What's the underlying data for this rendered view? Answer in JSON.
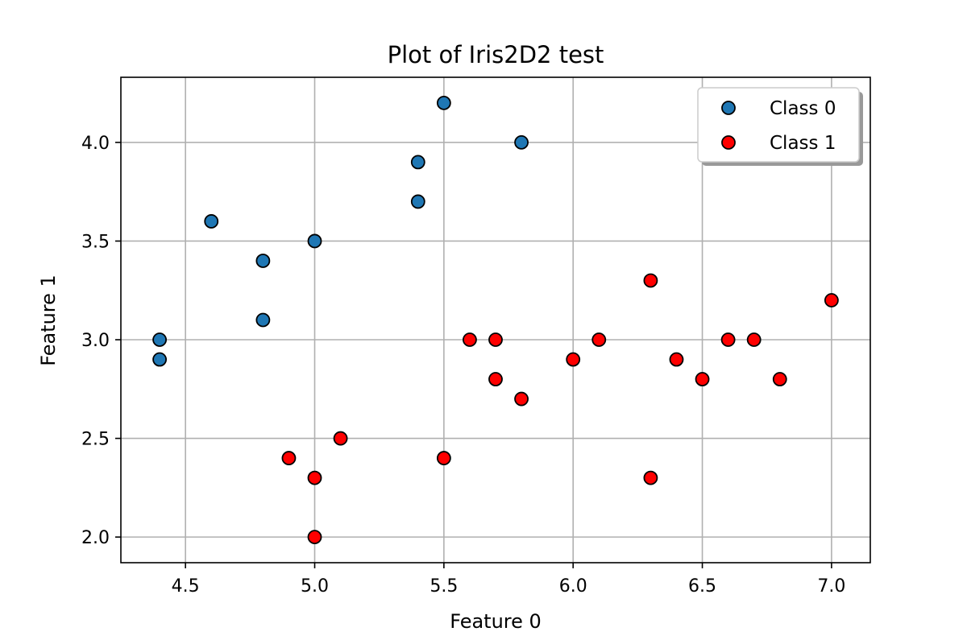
{
  "chart_data": {
    "type": "scatter",
    "title": "Plot of Iris2D2 test",
    "xlabel": "Feature 0",
    "ylabel": "Feature 1",
    "xlim": [
      4.25,
      7.15
    ],
    "ylim": [
      1.87,
      4.33
    ],
    "xticks": [
      4.5,
      5.0,
      5.5,
      6.0,
      6.5,
      7.0
    ],
    "xtick_labels": [
      "4.5",
      "5.0",
      "5.5",
      "6.0",
      "6.5",
      "7.0"
    ],
    "yticks": [
      2.0,
      2.5,
      3.0,
      3.5,
      4.0
    ],
    "ytick_labels": [
      "2.0",
      "2.5",
      "3.0",
      "3.5",
      "4.0"
    ],
    "grid": true,
    "legend_position": "top-right",
    "series": [
      {
        "name": "Class 0",
        "color": "#1f77b4",
        "points": [
          [
            4.4,
            3.0
          ],
          [
            4.4,
            2.9
          ],
          [
            4.6,
            3.6
          ],
          [
            4.8,
            3.4
          ],
          [
            4.8,
            3.1
          ],
          [
            5.0,
            3.5
          ],
          [
            5.4,
            3.9
          ],
          [
            5.4,
            3.7
          ],
          [
            5.5,
            4.2
          ],
          [
            5.8,
            4.0
          ]
        ]
      },
      {
        "name": "Class 1",
        "color": "#ff0000",
        "points": [
          [
            4.9,
            2.4
          ],
          [
            5.0,
            2.3
          ],
          [
            5.0,
            2.0
          ],
          [
            5.1,
            2.5
          ],
          [
            5.5,
            2.4
          ],
          [
            5.6,
            3.0
          ],
          [
            5.7,
            3.0
          ],
          [
            5.7,
            2.8
          ],
          [
            5.8,
            2.7
          ],
          [
            6.0,
            2.9
          ],
          [
            6.1,
            3.0
          ],
          [
            6.3,
            3.3
          ],
          [
            6.3,
            2.3
          ],
          [
            6.4,
            2.9
          ],
          [
            6.5,
            2.8
          ],
          [
            6.6,
            3.0
          ],
          [
            6.7,
            3.0
          ],
          [
            6.8,
            2.8
          ],
          [
            7.0,
            3.2
          ]
        ]
      }
    ]
  }
}
